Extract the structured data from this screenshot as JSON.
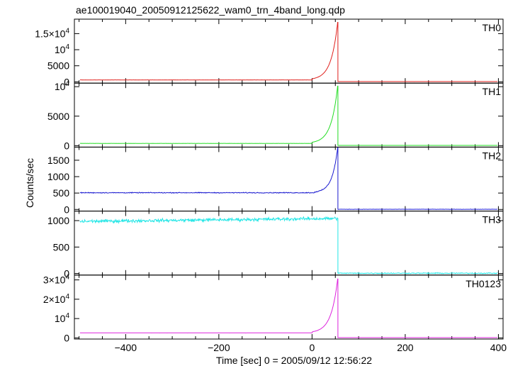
{
  "title": "ae100019040_20050912125622_wam0_trn_4band_long.qdp",
  "ylabel": "Counts/sec",
  "xlabel": "Time [sec] 0 = 2005/09/12 12:56:22",
  "chart_data": [
    {
      "type": "line",
      "panel": "TH0",
      "name": "TH0",
      "color": "#e0201c",
      "xlim": [
        -510,
        410
      ],
      "ylim": [
        -400,
        19500
      ],
      "yticks": [
        {
          "value": 0,
          "label": "0"
        },
        {
          "value": 5000,
          "label": "5000"
        },
        {
          "value": 10000,
          "label": "10",
          "exp": "4"
        },
        {
          "value": 15000,
          "label": "1.5×10",
          "exp": "4"
        }
      ],
      "profile": {
        "baseline": 600,
        "noise": 25,
        "rise_start": 0,
        "peak_time": 55,
        "peak": 18500,
        "rise_tau": 14,
        "post": 80
      }
    },
    {
      "type": "line",
      "panel": "TH1",
      "name": "TH1",
      "color": "#22dd22",
      "xlim": [
        -510,
        410
      ],
      "ylim": [
        -250,
        10600
      ],
      "yticks": [
        {
          "value": 0,
          "label": "0"
        },
        {
          "value": 5000,
          "label": "5000"
        },
        {
          "value": 10000,
          "label": "10",
          "exp": "4"
        }
      ],
      "profile": {
        "baseline": 380,
        "noise": 18,
        "rise_start": 0,
        "peak_time": 55,
        "peak": 10100,
        "rise_tau": 14,
        "post": 40
      }
    },
    {
      "type": "line",
      "panel": "TH2",
      "name": "TH2",
      "color": "#1a1ad0",
      "xlim": [
        -510,
        410
      ],
      "ylim": [
        -50,
        1900
      ],
      "yticks": [
        {
          "value": 0,
          "label": "0"
        },
        {
          "value": 500,
          "label": "500"
        },
        {
          "value": 1000,
          "label": "1000"
        },
        {
          "value": 1500,
          "label": "1500"
        }
      ],
      "profile": {
        "baseline": 510,
        "noise": 18,
        "rise_start": 5,
        "peak_time": 55,
        "peak": 1880,
        "rise_tau": 12,
        "post": 5
      }
    },
    {
      "type": "line",
      "panel": "TH3",
      "name": "TH3",
      "color": "#22e6e6",
      "xlim": [
        -510,
        410
      ],
      "ylim": [
        -30,
        1180
      ],
      "yticks": [
        {
          "value": 0,
          "label": "0"
        },
        {
          "value": 500,
          "label": "500"
        },
        {
          "value": 1000,
          "label": "1000"
        }
      ],
      "profile": {
        "baseline": 985,
        "slope": 0.1,
        "noise": 45,
        "rise_start": 60,
        "peak_time": 55,
        "peak": 1040,
        "rise_tau": 1,
        "post": 5
      }
    },
    {
      "type": "line",
      "panel": "TH0123",
      "name": "TH0123",
      "color": "#dd22dd",
      "xlim": [
        -510,
        410
      ],
      "ylim": [
        -600,
        32500
      ],
      "yticks": [
        {
          "value": 0,
          "label": "0"
        },
        {
          "value": 10000,
          "label": "10",
          "exp": "4"
        },
        {
          "value": 20000,
          "label": "2×10",
          "exp": "4"
        },
        {
          "value": 30000,
          "label": "3×10",
          "exp": "4"
        }
      ],
      "xticks": [
        {
          "value": -400,
          "label": "−400"
        },
        {
          "value": -200,
          "label": "−200"
        },
        {
          "value": 0,
          "label": "0"
        },
        {
          "value": 200,
          "label": "200"
        },
        {
          "value": 400,
          "label": "400"
        }
      ],
      "profile": {
        "baseline": 2600,
        "noise": 40,
        "rise_start": 0,
        "peak_time": 55,
        "peak": 30500,
        "rise_tau": 14,
        "post": 130
      }
    }
  ]
}
